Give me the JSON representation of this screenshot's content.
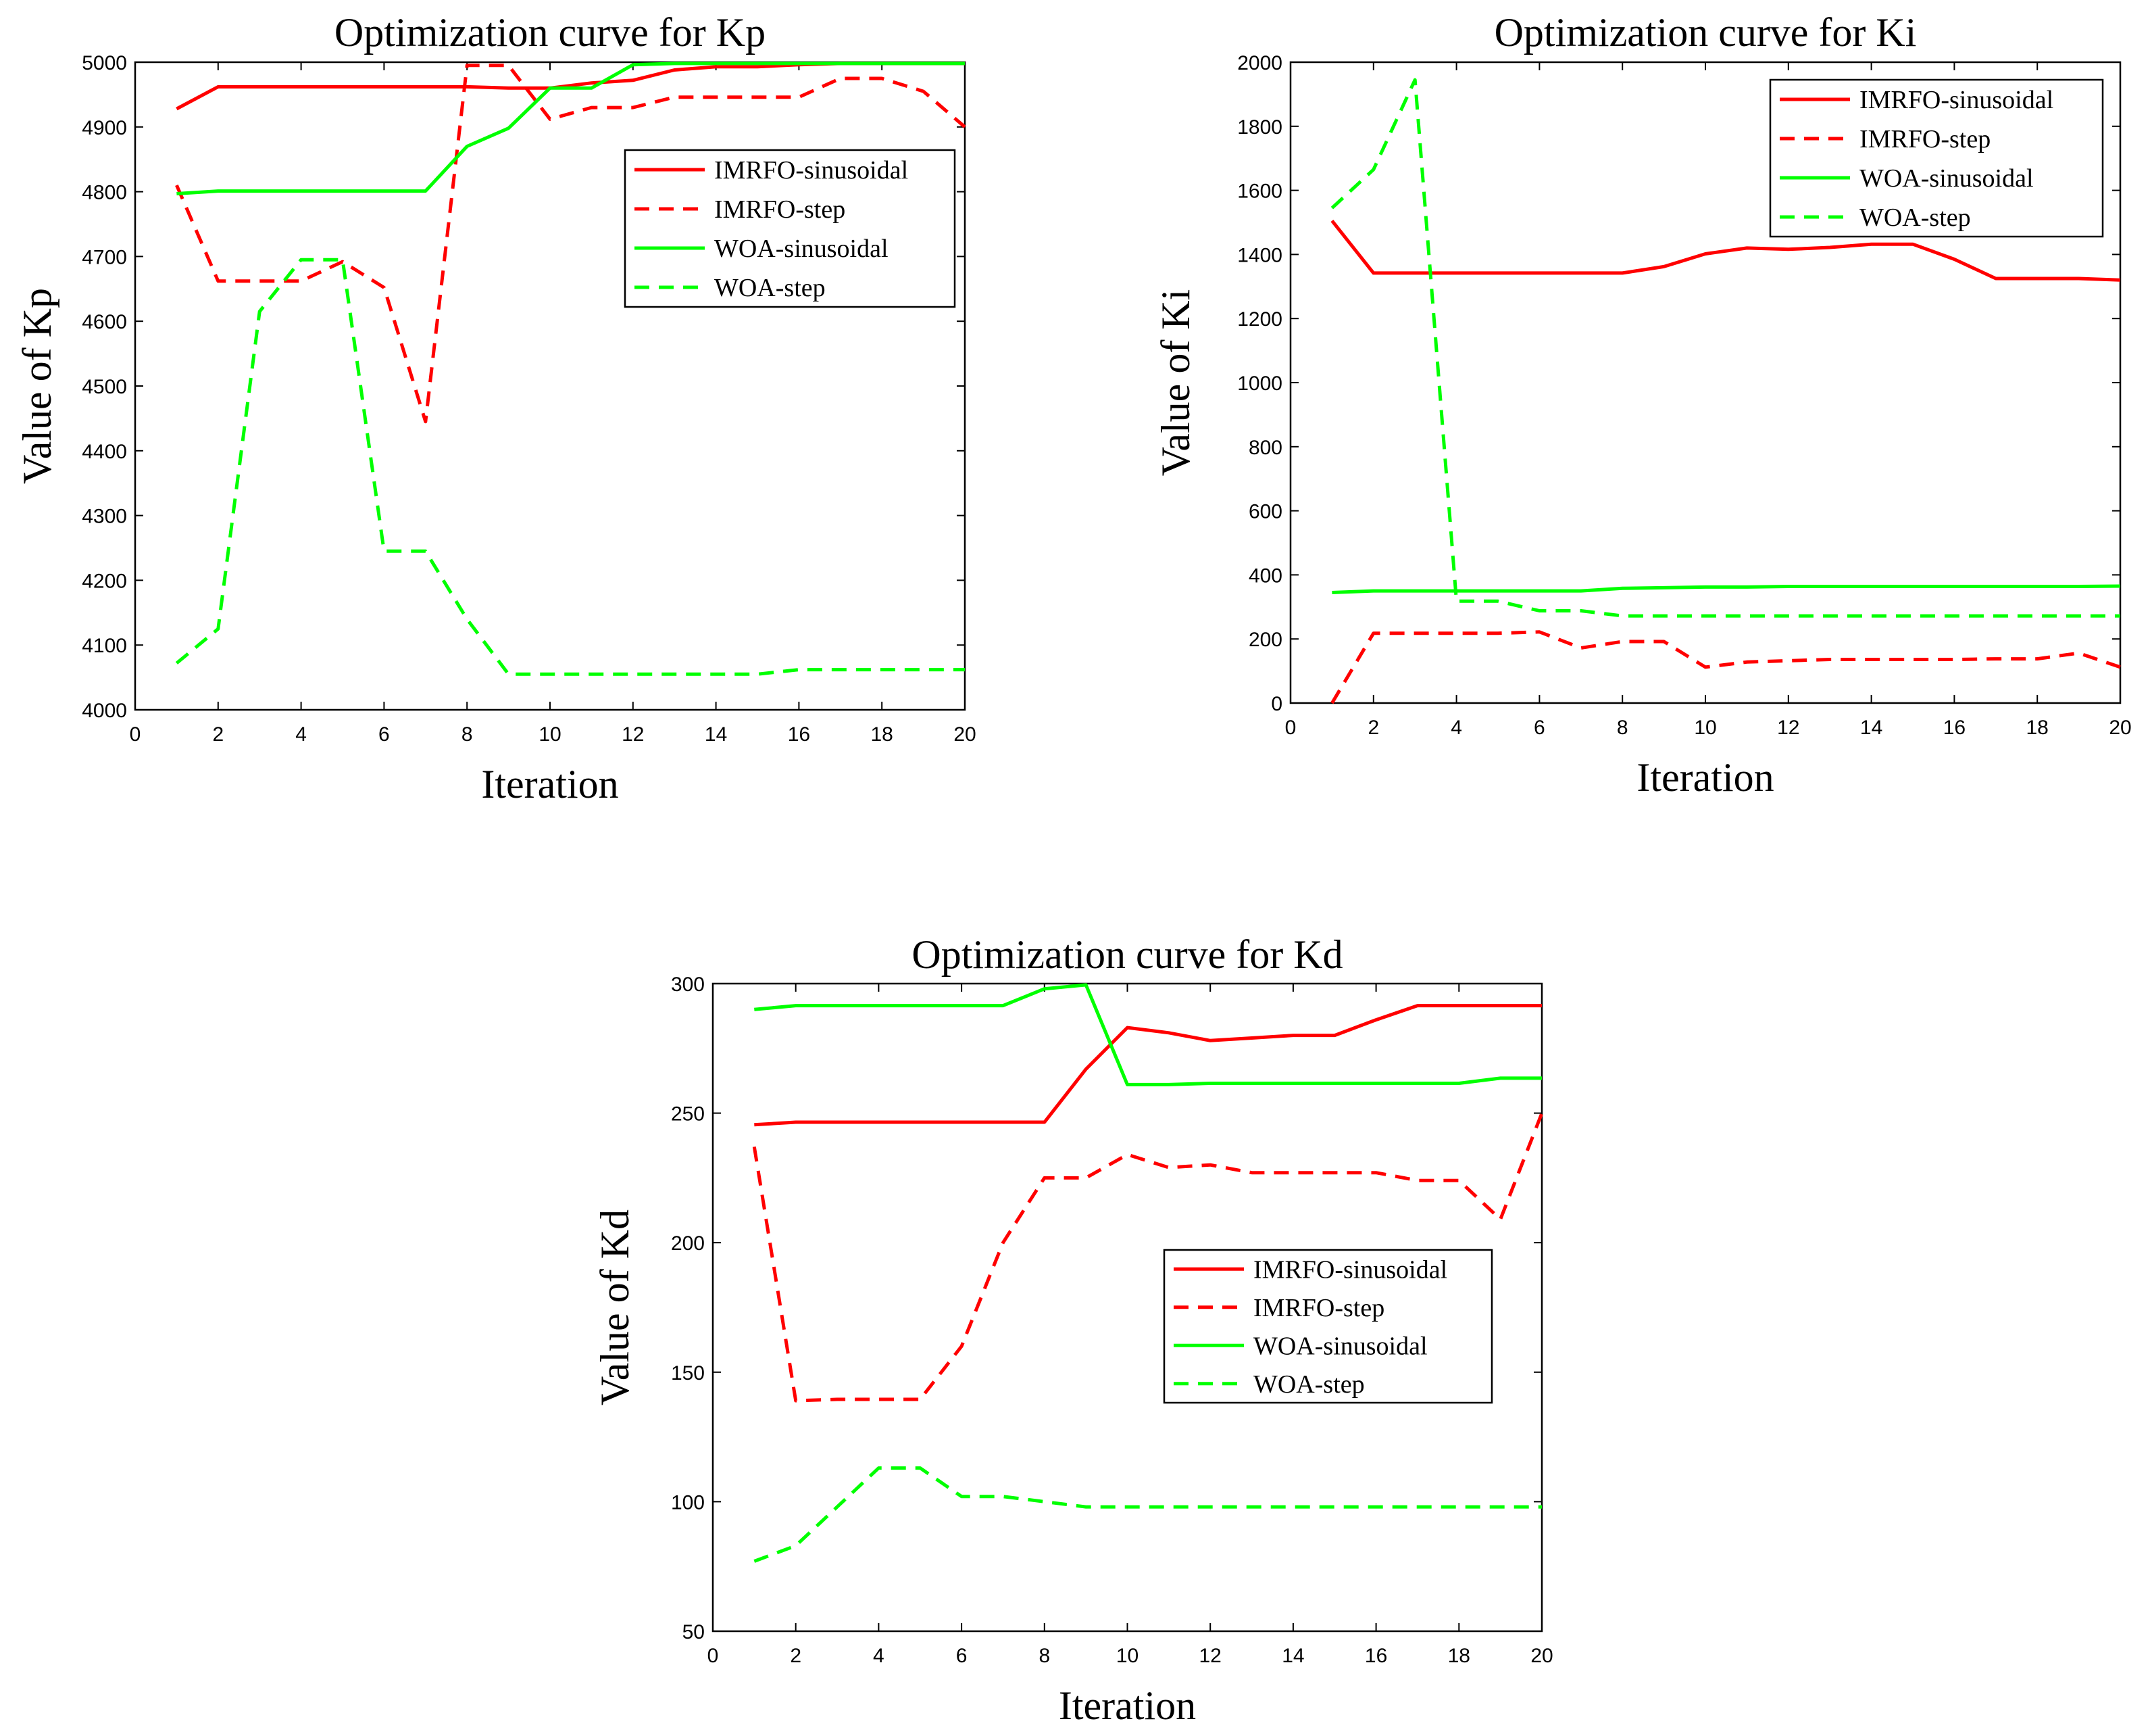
{
  "chart_data": [
    {
      "id": "kp",
      "type": "line",
      "title": "Optimization curve for Kp",
      "xlabel": "Iteration",
      "ylabel": "Value of Kp",
      "xlim": [
        0,
        20
      ],
      "ylim": [
        4000,
        5000
      ],
      "xticks": [
        0,
        2,
        4,
        6,
        8,
        10,
        12,
        14,
        16,
        18,
        20
      ],
      "yticks": [
        4000,
        4100,
        4200,
        4300,
        4400,
        4500,
        4600,
        4700,
        4800,
        4900,
        5000
      ],
      "legend_position": "upper-right",
      "x": [
        1,
        2,
        3,
        4,
        5,
        6,
        7,
        8,
        9,
        10,
        11,
        12,
        13,
        14,
        15,
        16,
        17,
        18,
        19,
        20
      ],
      "series": [
        {
          "name": "IMRFO-sinusoidal",
          "color": "#ff0000",
          "style": "solid",
          "values": [
            4928,
            4962,
            4962,
            4962,
            4962,
            4962,
            4962,
            4962,
            4960,
            4960,
            4968,
            4972,
            4988,
            4993,
            4993,
            4996,
            4998,
            4998,
            4998,
            4998
          ]
        },
        {
          "name": "IMRFO-step",
          "color": "#ff0000",
          "style": "dashed",
          "values": [
            4810,
            4662,
            4662,
            4662,
            4692,
            4652,
            4445,
            4995,
            4995,
            4912,
            4930,
            4930,
            4946,
            4946,
            4946,
            4946,
            4975,
            4975,
            4955,
            4900
          ]
        },
        {
          "name": "WOA-sinusoidal",
          "color": "#00ff00",
          "style": "solid",
          "values": [
            4797,
            4801,
            4801,
            4801,
            4801,
            4801,
            4801,
            4870,
            4898,
            4960,
            4960,
            4996,
            4998,
            4998,
            4998,
            4998,
            4998,
            4998,
            4998,
            4998
          ]
        },
        {
          "name": "WOA-step",
          "color": "#00ff00",
          "style": "dashed",
          "values": [
            4072,
            4125,
            4615,
            4695,
            4695,
            4245,
            4245,
            4140,
            4055,
            4055,
            4055,
            4055,
            4055,
            4055,
            4055,
            4062,
            4062,
            4062,
            4062,
            4062
          ]
        }
      ]
    },
    {
      "id": "ki",
      "type": "line",
      "title": "Optimization curve for Ki",
      "xlabel": "Iteration",
      "ylabel": "Value of Ki",
      "xlim": [
        0,
        20
      ],
      "ylim": [
        0,
        2000
      ],
      "xticks": [
        0,
        2,
        4,
        6,
        8,
        10,
        12,
        14,
        16,
        18,
        20
      ],
      "yticks": [
        0,
        200,
        400,
        600,
        800,
        1000,
        1200,
        1400,
        1600,
        1800,
        2000
      ],
      "legend_position": "upper-right",
      "x": [
        1,
        2,
        3,
        4,
        5,
        6,
        7,
        8,
        9,
        10,
        11,
        12,
        13,
        14,
        15,
        16,
        17,
        18,
        19,
        20
      ],
      "series": [
        {
          "name": "IMRFO-sinusoidal",
          "color": "#ff0000",
          "style": "solid",
          "values": [
            1505,
            1342,
            1342,
            1342,
            1342,
            1342,
            1342,
            1342,
            1362,
            1402,
            1420,
            1416,
            1422,
            1432,
            1432,
            1385,
            1325,
            1325,
            1325,
            1320
          ]
        },
        {
          "name": "IMRFO-step",
          "color": "#ff0000",
          "style": "dashed",
          "values": [
            0,
            218,
            218,
            218,
            218,
            222,
            172,
            192,
            192,
            112,
            128,
            132,
            136,
            136,
            136,
            136,
            138,
            138,
            156,
            112
          ]
        },
        {
          "name": "WOA-sinusoidal",
          "color": "#00ff00",
          "style": "solid",
          "values": [
            345,
            350,
            350,
            350,
            350,
            350,
            350,
            358,
            360,
            362,
            362,
            364,
            364,
            364,
            364,
            364,
            364,
            364,
            364,
            365
          ]
        },
        {
          "name": "WOA-step",
          "color": "#00ff00",
          "style": "dashed",
          "values": [
            1545,
            1665,
            1945,
            318,
            318,
            288,
            288,
            272,
            272,
            272,
            272,
            272,
            272,
            272,
            272,
            272,
            272,
            272,
            272,
            272
          ]
        }
      ]
    },
    {
      "id": "kd",
      "type": "line",
      "title": "Optimization curve for Kd",
      "xlabel": "Iteration",
      "ylabel": "Value of Kd",
      "xlim": [
        0,
        20
      ],
      "ylim": [
        50,
        300
      ],
      "xticks": [
        0,
        2,
        4,
        6,
        8,
        10,
        12,
        14,
        16,
        18,
        20
      ],
      "yticks": [
        50,
        100,
        150,
        200,
        250,
        300
      ],
      "legend_position": "center-right",
      "x": [
        1,
        2,
        3,
        4,
        5,
        6,
        7,
        8,
        9,
        10,
        11,
        12,
        13,
        14,
        15,
        16,
        17,
        18,
        19,
        20
      ],
      "series": [
        {
          "name": "IMRFO-sinusoidal",
          "color": "#ff0000",
          "style": "solid",
          "values": [
            245.5,
            246.5,
            246.5,
            246.5,
            246.5,
            246.5,
            246.5,
            246.5,
            267,
            283,
            281,
            278,
            279,
            280,
            280,
            286,
            291.5,
            291.5,
            291.5,
            291.5
          ]
        },
        {
          "name": "IMRFO-step",
          "color": "#ff0000",
          "style": "dashed",
          "values": [
            237,
            139,
            139.5,
            139.5,
            139.5,
            160,
            200,
            225,
            225,
            234,
            229,
            230,
            227,
            227,
            227,
            227,
            224,
            224,
            209,
            250
          ]
        },
        {
          "name": "WOA-sinusoidal",
          "color": "#00ff00",
          "style": "solid",
          "values": [
            290,
            291.5,
            291.5,
            291.5,
            291.5,
            291.5,
            291.5,
            298,
            299.5,
            261,
            261,
            261.5,
            261.5,
            261.5,
            261.5,
            261.5,
            261.5,
            261.5,
            263.5,
            263.5
          ]
        },
        {
          "name": "WOA-step",
          "color": "#00ff00",
          "style": "dashed",
          "values": [
            77,
            83,
            98,
            113,
            113,
            102,
            102,
            100,
            98,
            98,
            98,
            98,
            98,
            98,
            98,
            98,
            98,
            98,
            98,
            98
          ]
        }
      ]
    }
  ]
}
